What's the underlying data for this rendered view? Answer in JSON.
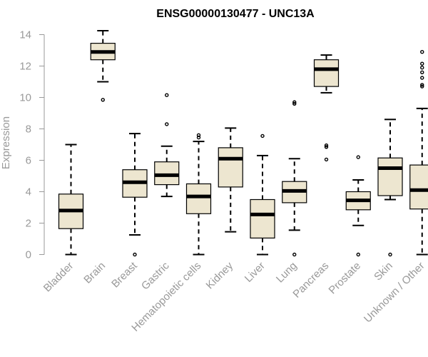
{
  "chart_data": {
    "type": "boxplot",
    "title": "ENSG00000130477 - UNC13A",
    "xlabel": "",
    "ylabel": "Expression",
    "ylim": [
      0,
      14
    ],
    "yticks": [
      0,
      2,
      4,
      6,
      8,
      10,
      12,
      14
    ],
    "categories": [
      "Bladder",
      "Brain",
      "Breast",
      "Gastric",
      "Hematopoietic cells",
      "Kidney",
      "Liver",
      "Lung",
      "Pancreas",
      "Prostate",
      "Skin",
      "Unknown / Other"
    ],
    "boxes": [
      {
        "label": "Bladder",
        "whisker_low": 0.0,
        "q1": 1.65,
        "median": 2.8,
        "q3": 3.85,
        "whisker_high": 7.0,
        "outliers": []
      },
      {
        "label": "Brain",
        "whisker_low": 11.0,
        "q1": 12.4,
        "median": 12.9,
        "q3": 13.45,
        "whisker_high": 14.25,
        "outliers": [
          9.85
        ]
      },
      {
        "label": "Breast",
        "whisker_low": 1.25,
        "q1": 3.65,
        "median": 4.6,
        "q3": 5.4,
        "whisker_high": 7.7,
        "outliers": [
          0.0
        ]
      },
      {
        "label": "Gastric",
        "whisker_low": 3.7,
        "q1": 4.45,
        "median": 5.05,
        "q3": 5.9,
        "whisker_high": 6.9,
        "outliers": [
          8.3,
          10.15
        ]
      },
      {
        "label": "Hematopoietic cells",
        "whisker_low": 0.0,
        "q1": 2.6,
        "median": 3.7,
        "q3": 4.5,
        "whisker_high": 7.2,
        "outliers": [
          7.45,
          7.6
        ]
      },
      {
        "label": "Kidney",
        "whisker_low": 1.45,
        "q1": 4.3,
        "median": 6.1,
        "q3": 6.8,
        "whisker_high": 8.05,
        "outliers": []
      },
      {
        "label": "Liver",
        "whisker_low": 0.0,
        "q1": 1.05,
        "median": 2.55,
        "q3": 3.5,
        "whisker_high": 6.3,
        "outliers": [
          7.55
        ]
      },
      {
        "label": "Lung",
        "whisker_low": 1.55,
        "q1": 3.3,
        "median": 4.05,
        "q3": 4.65,
        "whisker_high": 6.1,
        "outliers": [
          0.0,
          9.6,
          9.7
        ]
      },
      {
        "label": "Pancreas",
        "whisker_low": 10.3,
        "q1": 10.7,
        "median": 11.8,
        "q3": 12.4,
        "whisker_high": 12.7,
        "outliers": [
          6.05,
          6.85,
          6.95
        ]
      },
      {
        "label": "Prostate",
        "whisker_low": 1.85,
        "q1": 2.85,
        "median": 3.45,
        "q3": 4.0,
        "whisker_high": 4.75,
        "outliers": [
          0.0,
          6.2
        ]
      },
      {
        "label": "Skin",
        "whisker_low": 3.5,
        "q1": 3.75,
        "median": 5.5,
        "q3": 6.15,
        "whisker_high": 8.6,
        "outliers": [
          0.0
        ]
      },
      {
        "label": "Unknown / Other",
        "whisker_low": 0.0,
        "q1": 2.9,
        "median": 4.1,
        "q3": 5.7,
        "whisker_high": 9.3,
        "outliers": [
          10.7,
          10.8,
          11.25,
          11.6,
          11.9,
          12.15,
          12.9
        ]
      }
    ],
    "box_fill": "#ede6d0",
    "box_stroke": "#000000",
    "axis_color": "#999999"
  }
}
